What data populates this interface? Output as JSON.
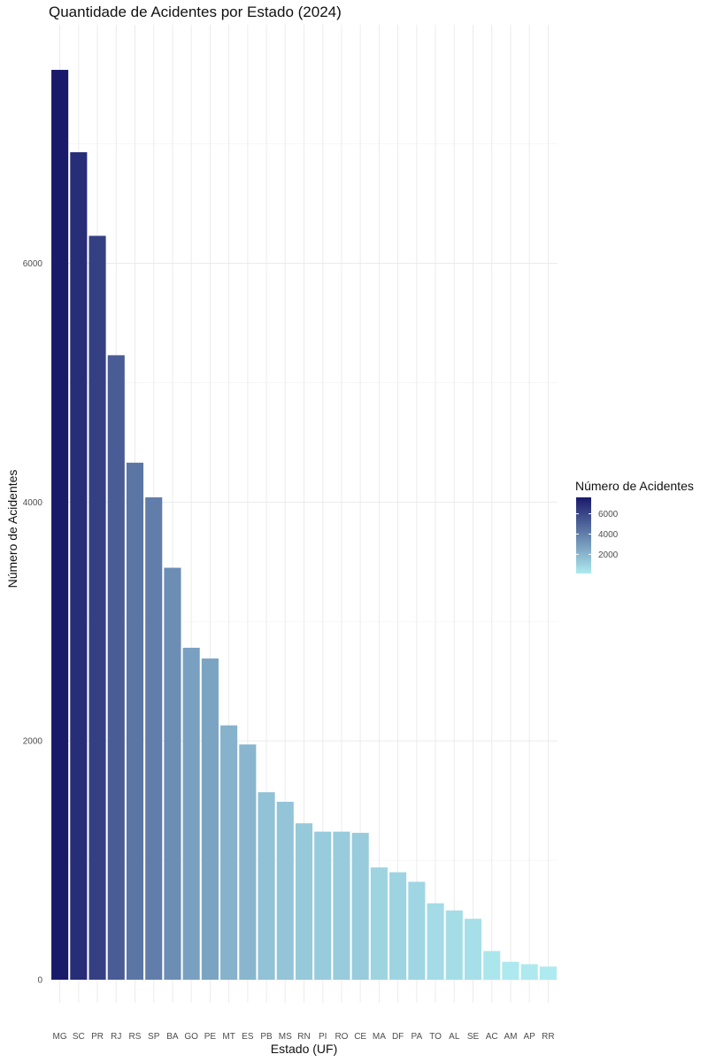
{
  "chart_data": {
    "type": "bar",
    "title": "Quantidade de Acidentes por Estado (2024)",
    "xlabel": "Estado (UF)",
    "ylabel": "Número de Acidentes",
    "categories": [
      "MG",
      "SC",
      "PR",
      "RJ",
      "RS",
      "SP",
      "BA",
      "GO",
      "PE",
      "MT",
      "ES",
      "PB",
      "MS",
      "RN",
      "PI",
      "RO",
      "CE",
      "MA",
      "DF",
      "PA",
      "TO",
      "AL",
      "SE",
      "AC",
      "AM",
      "AP",
      "RR"
    ],
    "values": [
      7620,
      6930,
      6230,
      5230,
      4330,
      4040,
      3450,
      2780,
      2690,
      2130,
      1970,
      1570,
      1490,
      1310,
      1240,
      1240,
      1230,
      940,
      900,
      820,
      640,
      580,
      510,
      240,
      150,
      130,
      110
    ],
    "ylim": [
      0,
      8000
    ],
    "yticks": [
      0,
      2000,
      4000,
      6000
    ],
    "grid": true,
    "color_scale": {
      "low": "#aeeaef",
      "high": "#1a1a6b"
    },
    "legend": {
      "title": "Número de Acidentes",
      "position": "right",
      "ticks": [
        2000,
        4000,
        6000
      ]
    }
  }
}
